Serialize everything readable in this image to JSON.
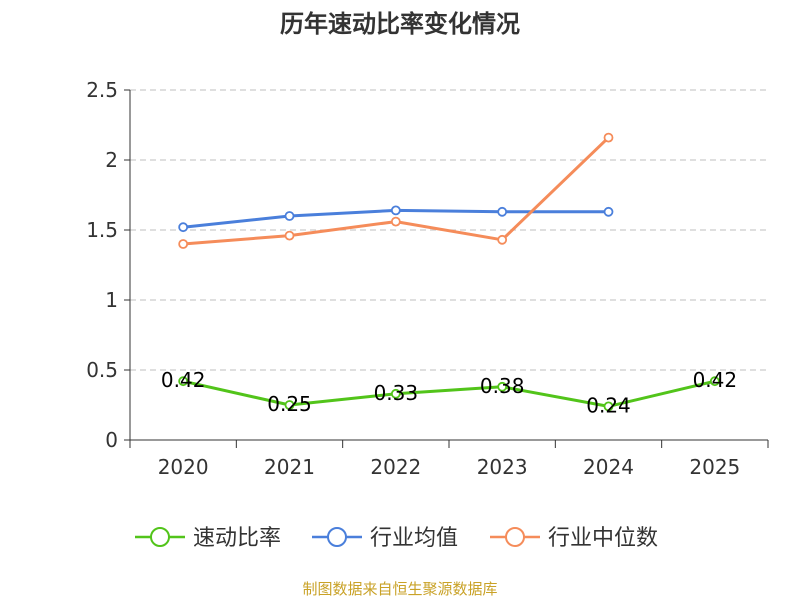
{
  "chart_data": {
    "type": "line",
    "title": "历年速动比率变化情况",
    "categories": [
      "2020",
      "2021",
      "2022",
      "2023",
      "2024",
      "2025"
    ],
    "ylim": [
      0,
      2.5
    ],
    "yticks": [
      "0",
      "0.5",
      "1",
      "1.5",
      "2",
      "2.5"
    ],
    "grid": true,
    "legend_position": "bottom",
    "series": [
      {
        "name": "速动比率",
        "color": "#52c41a",
        "values": [
          0.42,
          0.25,
          0.33,
          0.38,
          0.24,
          0.42
        ],
        "labels": [
          "0.42",
          "0.25",
          "0.33",
          "0.38",
          "0.24",
          "0.42"
        ]
      },
      {
        "name": "行业均值",
        "color": "#4a7fdb",
        "values": [
          1.52,
          1.6,
          1.64,
          1.63,
          1.63,
          null
        ]
      },
      {
        "name": "行业中位数",
        "color": "#f58c5a",
        "values": [
          1.4,
          1.46,
          1.56,
          1.43,
          2.16,
          null
        ]
      }
    ],
    "source": "制图数据来自恒生聚源数据库"
  }
}
